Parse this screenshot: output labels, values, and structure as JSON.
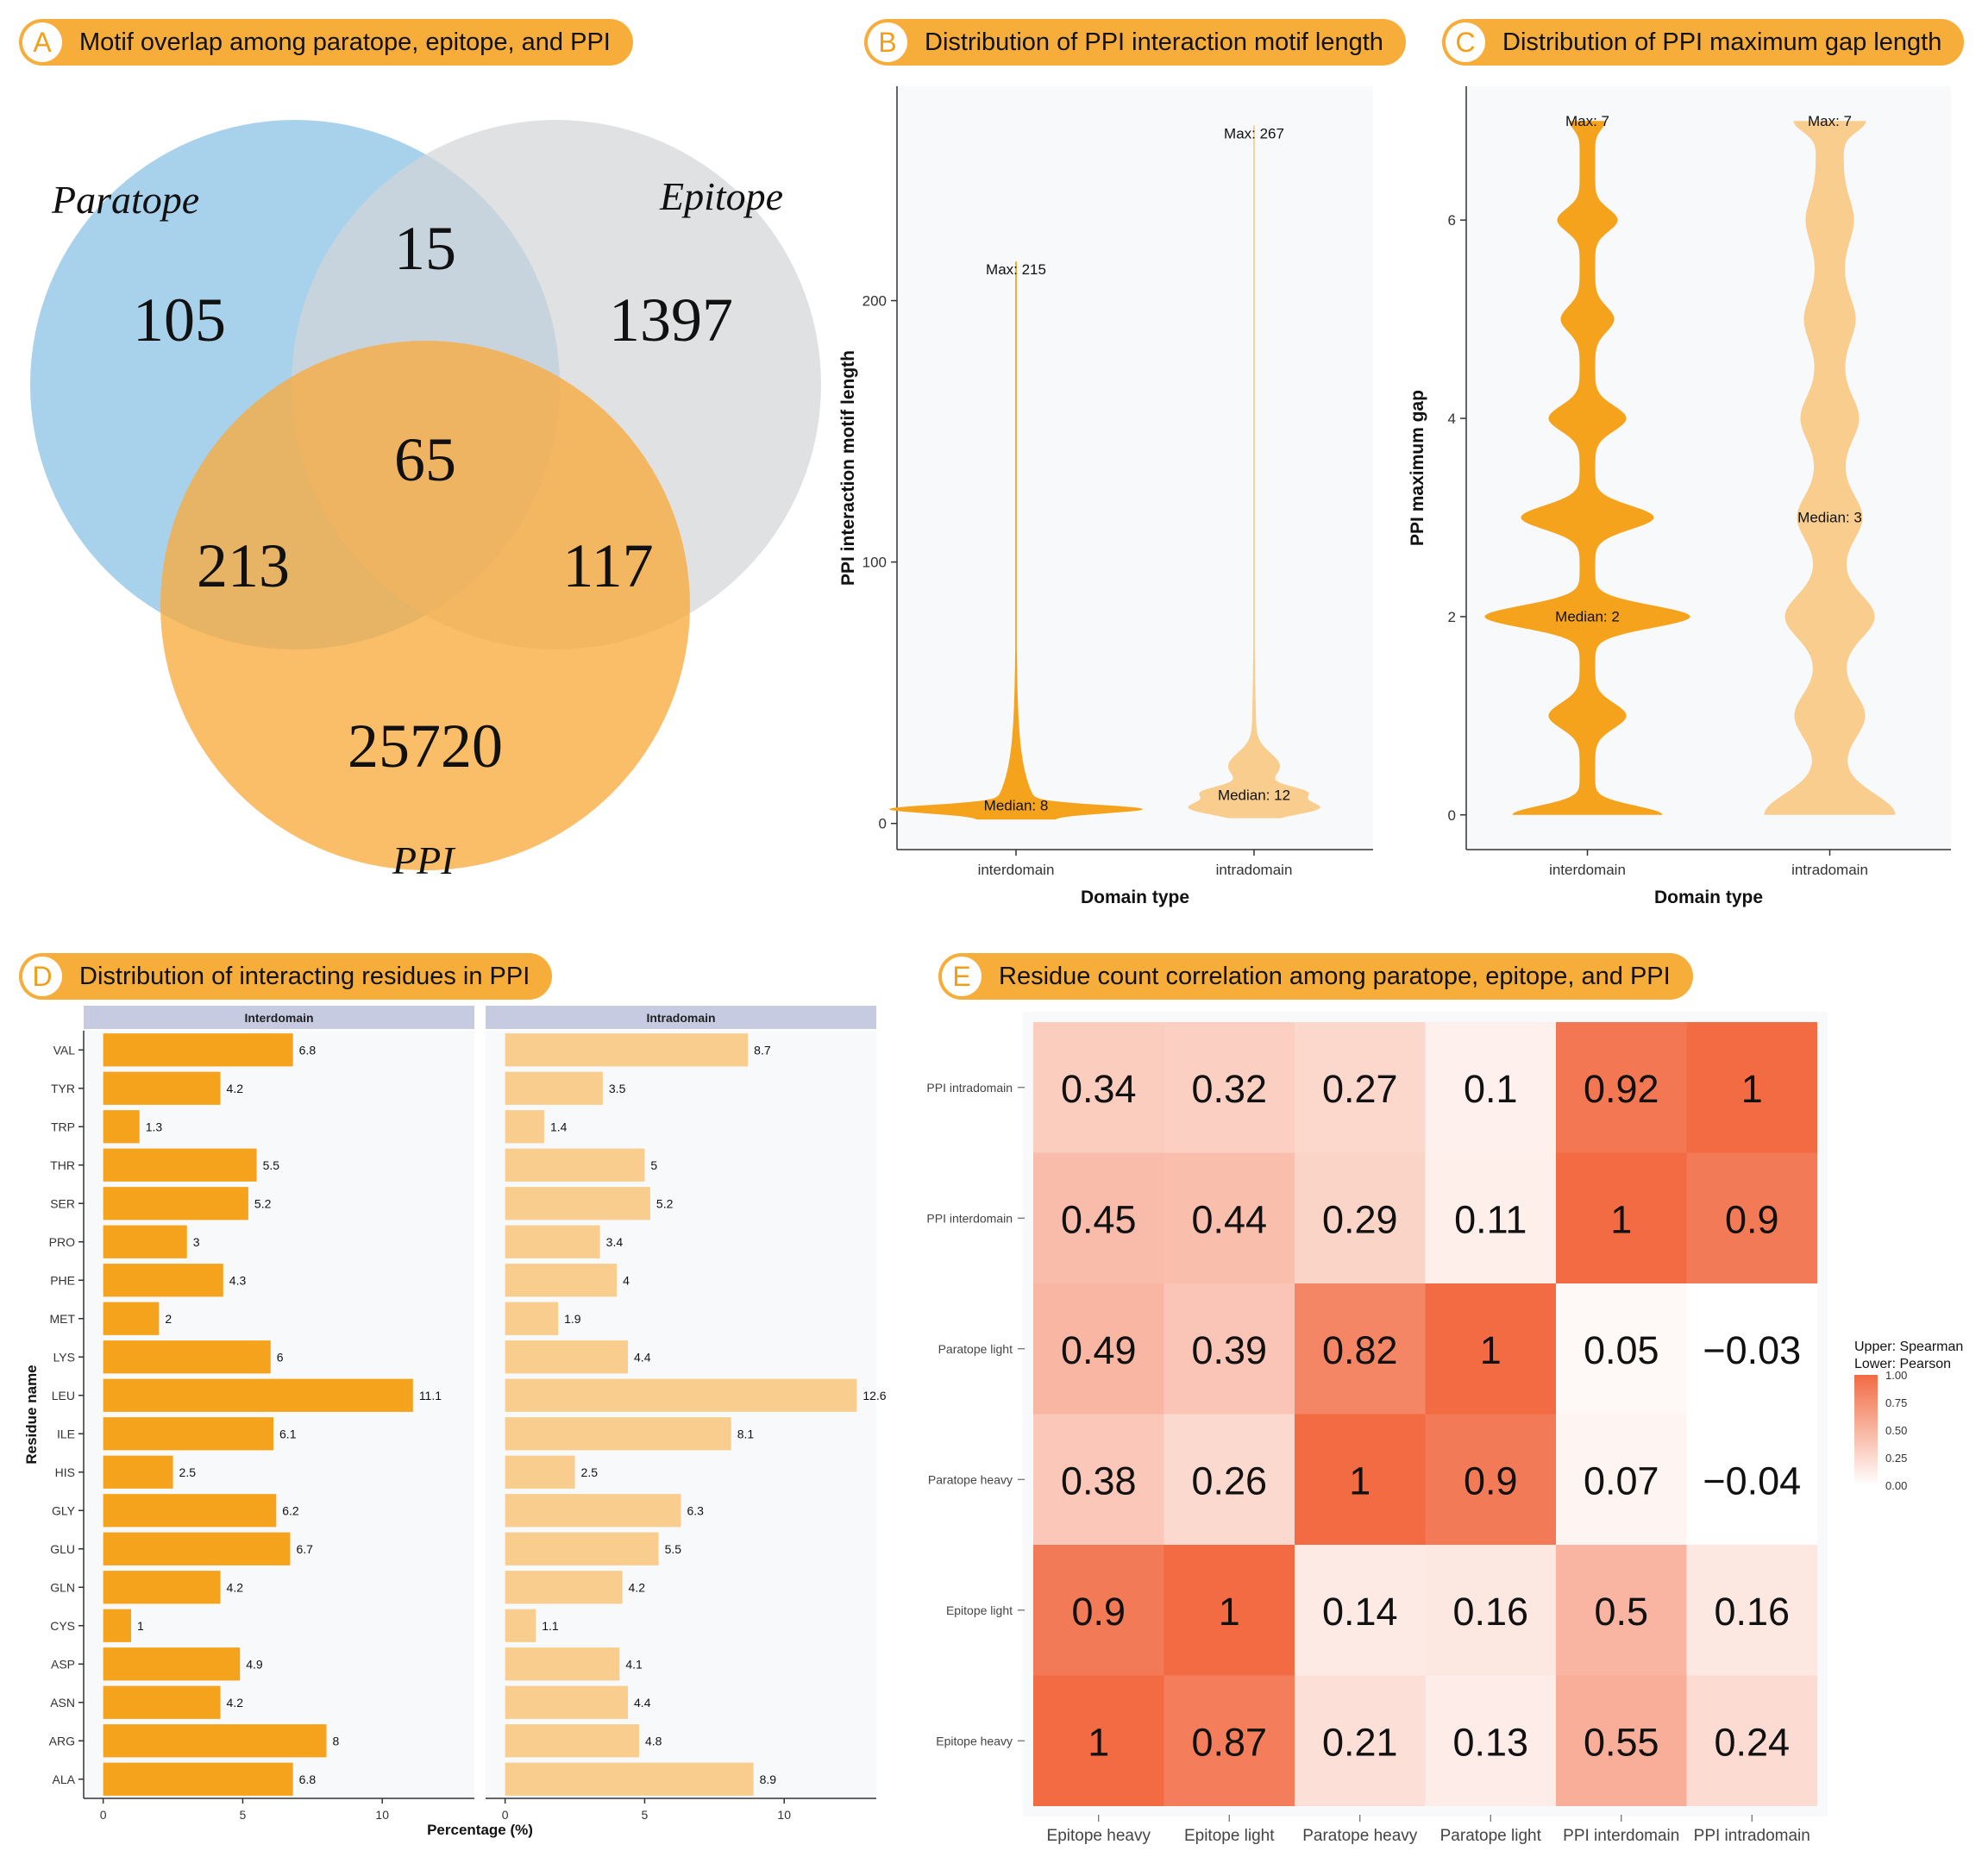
{
  "panels": {
    "A": {
      "letter": "A",
      "title": "Motif overlap among paratope, epitope, and PPI"
    },
    "B": {
      "letter": "B",
      "title": "Distribution of PPI interaction motif length"
    },
    "C": {
      "letter": "C",
      "title": "Distribution of PPI maximum gap length"
    },
    "D": {
      "letter": "D",
      "title": "Distribution of  interacting residues in PPI"
    },
    "E": {
      "letter": "E",
      "title": "Residue count correlation among paratope, epitope, and PPI"
    }
  },
  "colors": {
    "accent": "#f7ad3a",
    "interdomain": "#f5a31c",
    "intradomain": "#f9cd8e",
    "paratope": "#8fc4e6",
    "epitope": "#d6d8da",
    "ppi": "#f9ab3d",
    "heat_high": "#f26b43"
  },
  "chart_data": [
    {
      "type": "venn",
      "sets": [
        "Paratope",
        "Epitope",
        "PPI"
      ],
      "regions": {
        "paratope_only": 105,
        "epitope_only": 1397,
        "ppi_only": 25720,
        "paratope_epitope": 15,
        "paratope_ppi": 213,
        "epitope_ppi": 117,
        "all_three": 65
      }
    },
    {
      "type": "violin",
      "xlabel": "Domain type",
      "ylabel": "PPI interaction motif length",
      "categories": [
        "interdomain",
        "intradomain"
      ],
      "ylim": [
        -10,
        282
      ],
      "yticks": [
        0,
        100,
        200
      ],
      "annotations": [
        {
          "category": "interdomain",
          "max_label": "Max: 215",
          "max": 215,
          "median_label": "Median: 8",
          "median": 8
        },
        {
          "category": "intradomain",
          "max_label": "Max: 267",
          "max": 267,
          "median_label": "Median: 12",
          "median": 12
        }
      ]
    },
    {
      "type": "violin",
      "xlabel": "Domain type",
      "ylabel": "PPI maximum gap",
      "categories": [
        "interdomain",
        "intradomain"
      ],
      "ylim": [
        -0.35,
        7.35
      ],
      "yticks": [
        0,
        2,
        4,
        6
      ],
      "annotations": [
        {
          "category": "interdomain",
          "max_label": "Max: 7",
          "max": 7,
          "median_label": "Median: 2",
          "median": 2
        },
        {
          "category": "intradomain",
          "max_label": "Max: 7",
          "max": 7,
          "median_label": "Median: 3",
          "median": 3
        }
      ]
    },
    {
      "type": "bar",
      "orientation": "horizontal",
      "ylabel": "Residue name",
      "xlabel": "Percentage (%)",
      "xlim": [
        -0.7,
        13.3
      ],
      "xticks": [
        0,
        5,
        10
      ],
      "categories": [
        "VAL",
        "TYR",
        "TRP",
        "THR",
        "SER",
        "PRO",
        "PHE",
        "MET",
        "LYS",
        "LEU",
        "ILE",
        "HIS",
        "GLY",
        "GLU",
        "GLN",
        "CYS",
        "ASP",
        "ASN",
        "ARG",
        "ALA"
      ],
      "series": [
        {
          "name": "Interdomain",
          "values": [
            6.8,
            4.2,
            1.3,
            5.5,
            5.2,
            3,
            4.3,
            2,
            6,
            11.1,
            6.1,
            2.5,
            6.2,
            6.7,
            4.2,
            1,
            4.9,
            4.2,
            8,
            6.8
          ]
        },
        {
          "name": "Intradomain",
          "values": [
            8.7,
            3.5,
            1.4,
            5,
            5.2,
            3.4,
            4,
            1.9,
            4.4,
            12.6,
            8.1,
            2.5,
            6.3,
            5.5,
            4.2,
            1.1,
            4.1,
            4.4,
            4.8,
            8.9
          ]
        }
      ]
    },
    {
      "type": "heatmap",
      "x_labels": [
        "Epitope heavy",
        "Epitope light",
        "Paratope heavy",
        "Paratope light",
        "PPI interdomain",
        "PPI intradomain"
      ],
      "y_labels": [
        "PPI intradomain",
        "PPI interdomain",
        "Paratope light",
        "Paratope heavy",
        "Epitope light",
        "Epitope heavy"
      ],
      "values": [
        [
          "0.34",
          "0.32",
          "0.27",
          "0.1",
          "0.92",
          "1"
        ],
        [
          "0.45",
          "0.44",
          "0.29",
          "0.11",
          "1",
          "0.9"
        ],
        [
          "0.49",
          "0.39",
          "0.82",
          "1",
          "0.05",
          "−0.03"
        ],
        [
          "0.38",
          "0.26",
          "1",
          "0.9",
          "0.07",
          "−0.04"
        ],
        [
          "0.9",
          "1",
          "0.14",
          "0.16",
          "0.5",
          "0.16"
        ],
        [
          "1",
          "0.87",
          "0.21",
          "0.13",
          "0.55",
          "0.24"
        ]
      ],
      "legend": {
        "line1": "Upper: Spearman",
        "line2": "Lower: Pearson",
        "ticks": [
          "1.00",
          "0.75",
          "0.50",
          "0.25",
          "0.00"
        ],
        "range": [
          0,
          1
        ]
      }
    }
  ]
}
